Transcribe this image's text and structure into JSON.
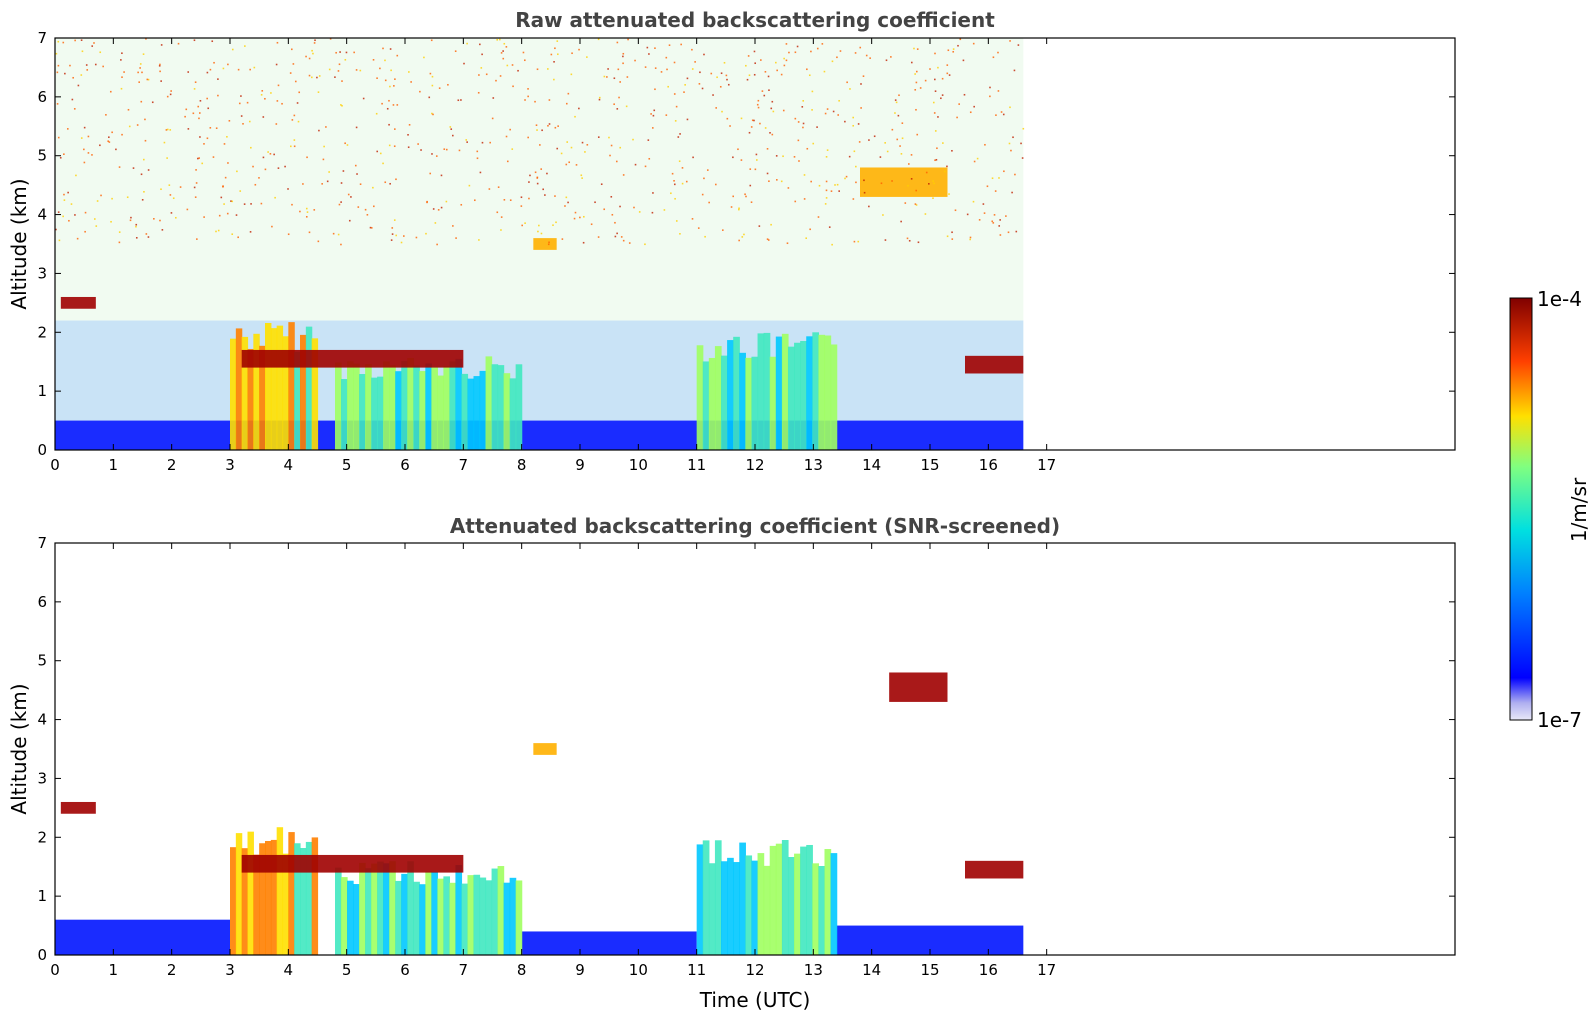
{
  "chart_data": [
    {
      "type": "heatmap",
      "title": "Raw attenuated backscattering coefficient",
      "xlabel": "",
      "ylabel": "Altitude (km)",
      "xlim": [
        0,
        24
      ],
      "ylim": [
        0,
        7
      ],
      "x_ticks": [
        "0",
        "1",
        "2",
        "3",
        "4",
        "5",
        "6",
        "7",
        "8",
        "9",
        "10",
        "11",
        "12",
        "13",
        "14",
        "15",
        "16",
        "17"
      ],
      "y_ticks": [
        "0",
        "1",
        "2",
        "3",
        "4",
        "5",
        "6",
        "7"
      ],
      "data_extent_hours": [
        0,
        16.6
      ],
      "features": [
        {
          "kind": "boundary_layer",
          "x": [
            0,
            16.6
          ],
          "alt_range": [
            0,
            0.5
          ],
          "level": "low"
        },
        {
          "kind": "aerosol_layer",
          "x": [
            3.0,
            4.5
          ],
          "alt_range": [
            0,
            2.2
          ],
          "level": "high"
        },
        {
          "kind": "aerosol_layer",
          "x": [
            4.8,
            8.0
          ],
          "alt_range": [
            0,
            1.6
          ],
          "level": "medium"
        },
        {
          "kind": "aerosol_layer",
          "x": [
            11.0,
            13.4
          ],
          "alt_range": [
            0,
            2.0
          ],
          "level": "medium"
        },
        {
          "kind": "cloud_layer",
          "x": [
            3.2,
            7.0
          ],
          "alt_range": [
            1.4,
            1.7
          ],
          "level": "max"
        },
        {
          "kind": "cloud",
          "x": [
            0.1,
            0.7
          ],
          "alt_range": [
            2.4,
            2.6
          ],
          "level": "max"
        },
        {
          "kind": "cloud",
          "x": [
            8.2,
            8.6
          ],
          "alt_range": [
            3.4,
            3.6
          ],
          "level": "high"
        },
        {
          "kind": "cloud",
          "x": [
            13.8,
            15.3
          ],
          "alt_range": [
            4.3,
            4.8
          ],
          "level": "high"
        },
        {
          "kind": "cloud",
          "x": [
            15.6,
            16.6
          ],
          "alt_range": [
            1.3,
            1.6
          ],
          "level": "max"
        },
        {
          "kind": "noise",
          "x": [
            0,
            16.6
          ],
          "alt_range": [
            3.5,
            7.0
          ],
          "level": "noise"
        }
      ]
    },
    {
      "type": "heatmap",
      "title": "Attenuated backscattering coefficient (SNR-screened)",
      "xlabel": "Time (UTC)",
      "ylabel": "Altitude (km)",
      "xlim": [
        0,
        24
      ],
      "ylim": [
        0,
        7
      ],
      "x_ticks": [
        "0",
        "1",
        "2",
        "3",
        "4",
        "5",
        "6",
        "7",
        "8",
        "9",
        "10",
        "11",
        "12",
        "13",
        "14",
        "15",
        "16",
        "17"
      ],
      "y_ticks": [
        "0",
        "1",
        "2",
        "3",
        "4",
        "5",
        "6",
        "7"
      ],
      "data_extent_hours": [
        0,
        16.6
      ],
      "features": [
        {
          "kind": "boundary_layer",
          "x": [
            0,
            3.0
          ],
          "alt_range": [
            0,
            0.6
          ],
          "level": "low"
        },
        {
          "kind": "boundary_layer",
          "x": [
            8.0,
            11.0
          ],
          "alt_range": [
            0,
            0.4
          ],
          "level": "low"
        },
        {
          "kind": "boundary_layer",
          "x": [
            13.4,
            16.6
          ],
          "alt_range": [
            0,
            0.5
          ],
          "level": "low"
        },
        {
          "kind": "aerosol_layer",
          "x": [
            3.0,
            4.5
          ],
          "alt_range": [
            0,
            2.2
          ],
          "level": "high"
        },
        {
          "kind": "aerosol_layer",
          "x": [
            4.8,
            8.0
          ],
          "alt_range": [
            0,
            1.6
          ],
          "level": "medium"
        },
        {
          "kind": "aerosol_layer",
          "x": [
            11.0,
            13.4
          ],
          "alt_range": [
            0,
            2.0
          ],
          "level": "medium"
        },
        {
          "kind": "cloud_layer",
          "x": [
            3.2,
            7.0
          ],
          "alt_range": [
            1.4,
            1.7
          ],
          "level": "max"
        },
        {
          "kind": "cloud",
          "x": [
            0.1,
            0.7
          ],
          "alt_range": [
            2.4,
            2.6
          ],
          "level": "max"
        },
        {
          "kind": "cloud",
          "x": [
            8.2,
            8.6
          ],
          "alt_range": [
            3.4,
            3.6
          ],
          "level": "high"
        },
        {
          "kind": "cloud",
          "x": [
            14.3,
            15.3
          ],
          "alt_range": [
            4.3,
            4.8
          ],
          "level": "max"
        },
        {
          "kind": "cloud",
          "x": [
            15.6,
            16.6
          ],
          "alt_range": [
            1.3,
            1.6
          ],
          "level": "max"
        }
      ]
    }
  ],
  "colorbar": {
    "label": "1/m/sr",
    "max_label": "1e-4",
    "min_label": "1e-7",
    "colormap": "jet",
    "colors": [
      "#e8e8f8",
      "#0000ff",
      "#0080ff",
      "#00e0e0",
      "#80ff80",
      "#ffe000",
      "#ff4000",
      "#800000"
    ]
  }
}
